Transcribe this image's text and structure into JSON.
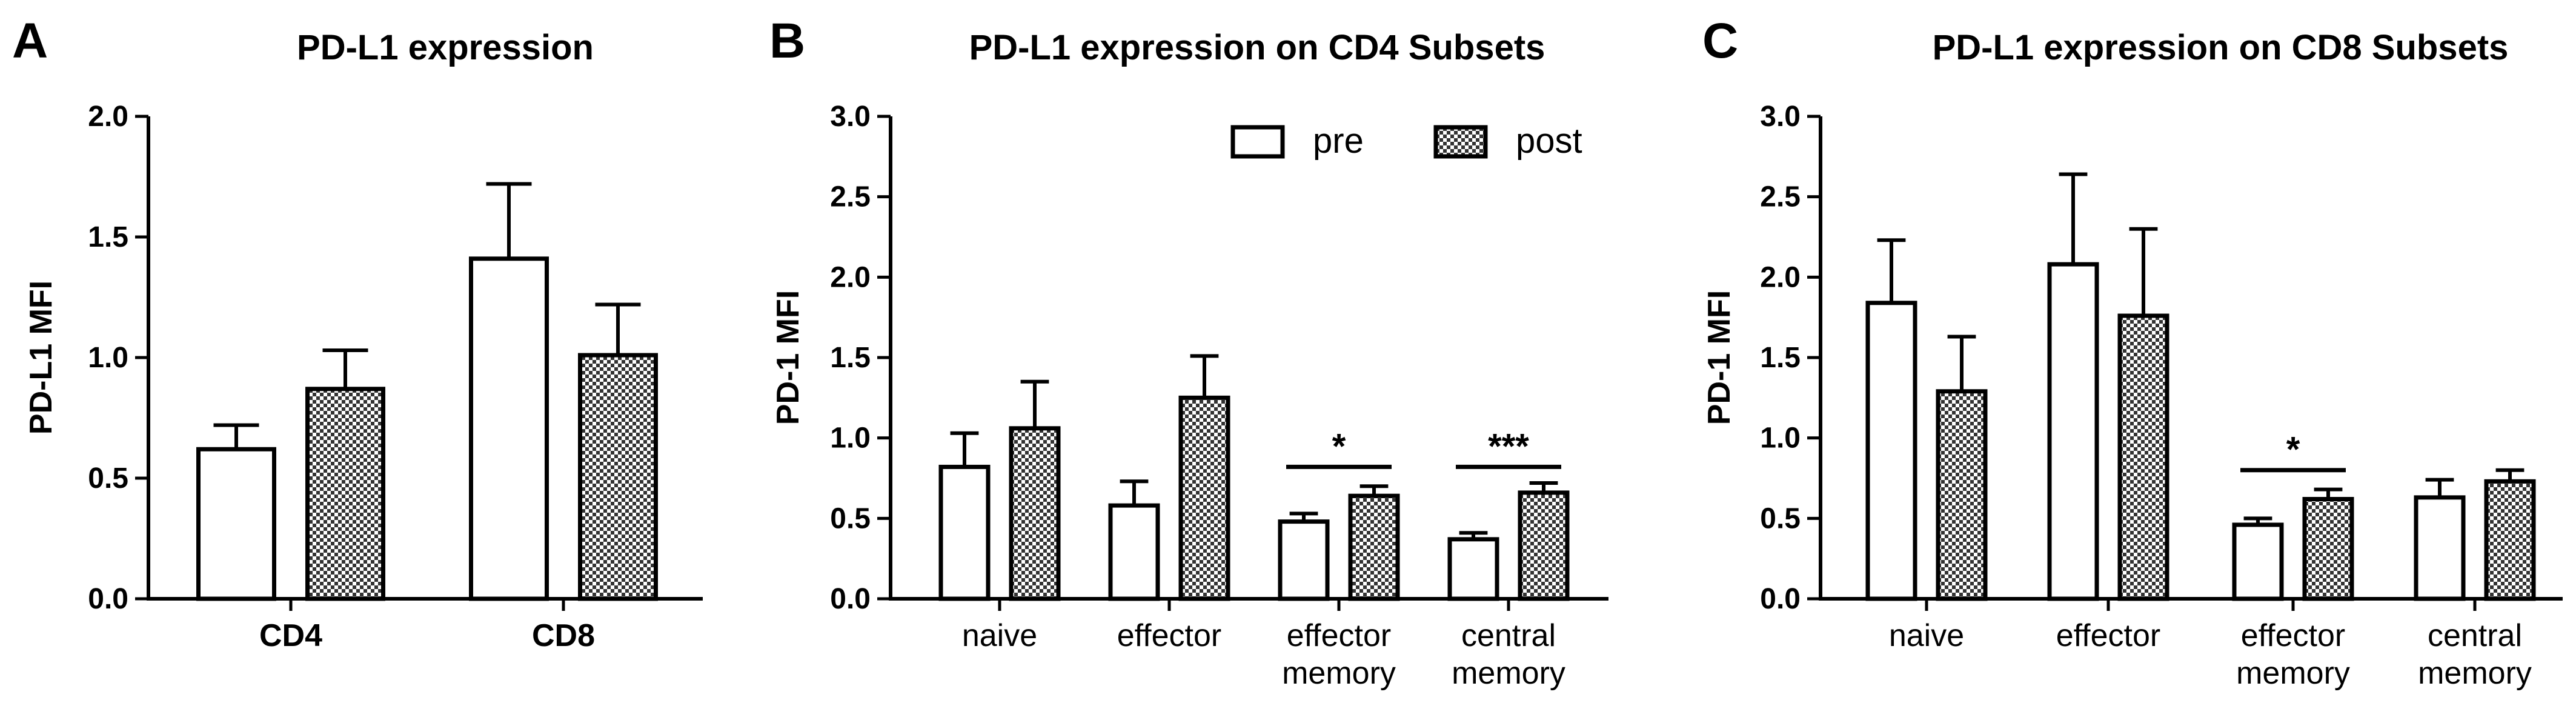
{
  "chart_data": [
    {
      "panel_letter": "A",
      "type": "bar",
      "title": "PD-L1 expression",
      "ylabel": "PD-L1 MFI",
      "xlabel": "",
      "ylim": [
        0,
        2.0
      ],
      "yticks": [
        "0.0",
        "0.5",
        "1.0",
        "1.5",
        "2.0"
      ],
      "categories": [
        "CD4",
        "CD8"
      ],
      "series": [
        {
          "name": "pre",
          "values": [
            0.62,
            1.41
          ],
          "errors": [
            0.1,
            0.31
          ]
        },
        {
          "name": "post",
          "values": [
            0.87,
            1.01
          ],
          "errors": [
            0.16,
            0.21
          ]
        }
      ],
      "significance": []
    },
    {
      "panel_letter": "B",
      "type": "bar",
      "title": "PD-L1 expression on CD4 Subsets",
      "ylabel": "PD-1 MFI",
      "xlabel": "",
      "ylim": [
        0,
        3.0
      ],
      "yticks": [
        "0.0",
        "0.5",
        "1.0",
        "1.5",
        "2.0",
        "2.5",
        "3.0"
      ],
      "categories": [
        [
          "naive"
        ],
        [
          "effector"
        ],
        [
          "effector",
          "memory"
        ],
        [
          "central",
          "memory"
        ]
      ],
      "series": [
        {
          "name": "pre",
          "values": [
            0.82,
            0.58,
            0.48,
            0.37
          ],
          "errors": [
            0.21,
            0.15,
            0.05,
            0.04
          ]
        },
        {
          "name": "post",
          "values": [
            1.06,
            1.25,
            0.64,
            0.66
          ],
          "errors": [
            0.29,
            0.26,
            0.06,
            0.06
          ]
        }
      ],
      "legend": {
        "position": "top-right",
        "entries": [
          "pre",
          "post"
        ]
      },
      "significance": [
        {
          "category_index": 2,
          "label": "*",
          "y": 0.82
        },
        {
          "category_index": 3,
          "label": "***",
          "y": 0.82
        }
      ]
    },
    {
      "panel_letter": "C",
      "type": "bar",
      "title": "PD-L1 expression on CD8 Subsets",
      "ylabel": "PD-1 MFI",
      "xlabel": "",
      "ylim": [
        0,
        3.0
      ],
      "yticks": [
        "0.0",
        "0.5",
        "1.0",
        "1.5",
        "2.0",
        "2.5",
        "3.0"
      ],
      "categories": [
        [
          "naive"
        ],
        [
          "effector"
        ],
        [
          "effector",
          "memory"
        ],
        [
          "central",
          "memory"
        ]
      ],
      "series": [
        {
          "name": "pre",
          "values": [
            1.84,
            2.08,
            0.46,
            0.63
          ],
          "errors": [
            0.39,
            0.56,
            0.04,
            0.11
          ]
        },
        {
          "name": "post",
          "values": [
            1.29,
            1.76,
            0.62,
            0.73
          ],
          "errors": [
            0.34,
            0.54,
            0.06,
            0.07
          ]
        }
      ],
      "significance": [
        {
          "category_index": 2,
          "label": "*",
          "y": 0.8
        }
      ]
    }
  ]
}
